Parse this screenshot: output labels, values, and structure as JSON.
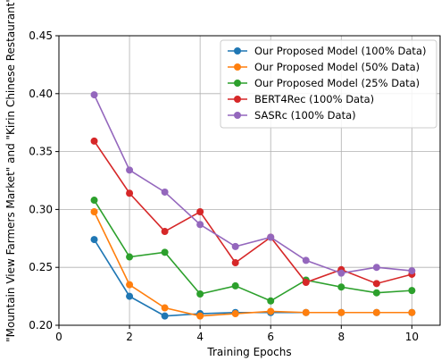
{
  "chart_data": {
    "type": "line",
    "xlabel": "Training Epochs",
    "ylabel": "\"Mountain View Farmers Market\" and \"Kirin Chinese Restaurant\"",
    "xlim": [
      0,
      10.8
    ],
    "ylim": [
      0.2,
      0.45
    ],
    "xticks": [
      0,
      2,
      4,
      6,
      8,
      10
    ],
    "yticks": [
      0.2,
      0.25,
      0.3,
      0.35,
      0.4,
      0.45
    ],
    "grid": true,
    "legend_position": "top-right",
    "x": [
      1,
      2,
      3,
      4,
      5,
      6,
      7,
      8,
      9,
      10
    ],
    "series": [
      {
        "name": "Our Proposed Model (100% Data)",
        "color": "#1f77b4",
        "values": [
          0.274,
          0.225,
          0.208,
          0.21,
          0.211,
          0.211,
          0.211,
          0.211,
          0.211,
          0.211
        ]
      },
      {
        "name": "Our Proposed Model (50% Data)",
        "color": "#ff7f0e",
        "values": [
          0.298,
          0.235,
          0.215,
          0.208,
          0.21,
          0.212,
          0.211,
          0.211,
          0.211,
          0.211
        ]
      },
      {
        "name": "Our Proposed Model (25% Data)",
        "color": "#2ca02c",
        "values": [
          0.308,
          0.259,
          0.263,
          0.227,
          0.234,
          0.221,
          0.239,
          0.233,
          0.228,
          0.23
        ]
      },
      {
        "name": "BERT4Rec (100% Data)",
        "color": "#d62728",
        "values": [
          0.359,
          0.314,
          0.281,
          0.298,
          0.254,
          0.276,
          0.237,
          0.248,
          0.236,
          0.244
        ]
      },
      {
        "name": "SASRc (100% Data)",
        "color": "#9467bd",
        "values": [
          0.399,
          0.334,
          0.315,
          0.287,
          0.268,
          0.276,
          0.256,
          0.245,
          0.25,
          0.247
        ]
      }
    ]
  }
}
